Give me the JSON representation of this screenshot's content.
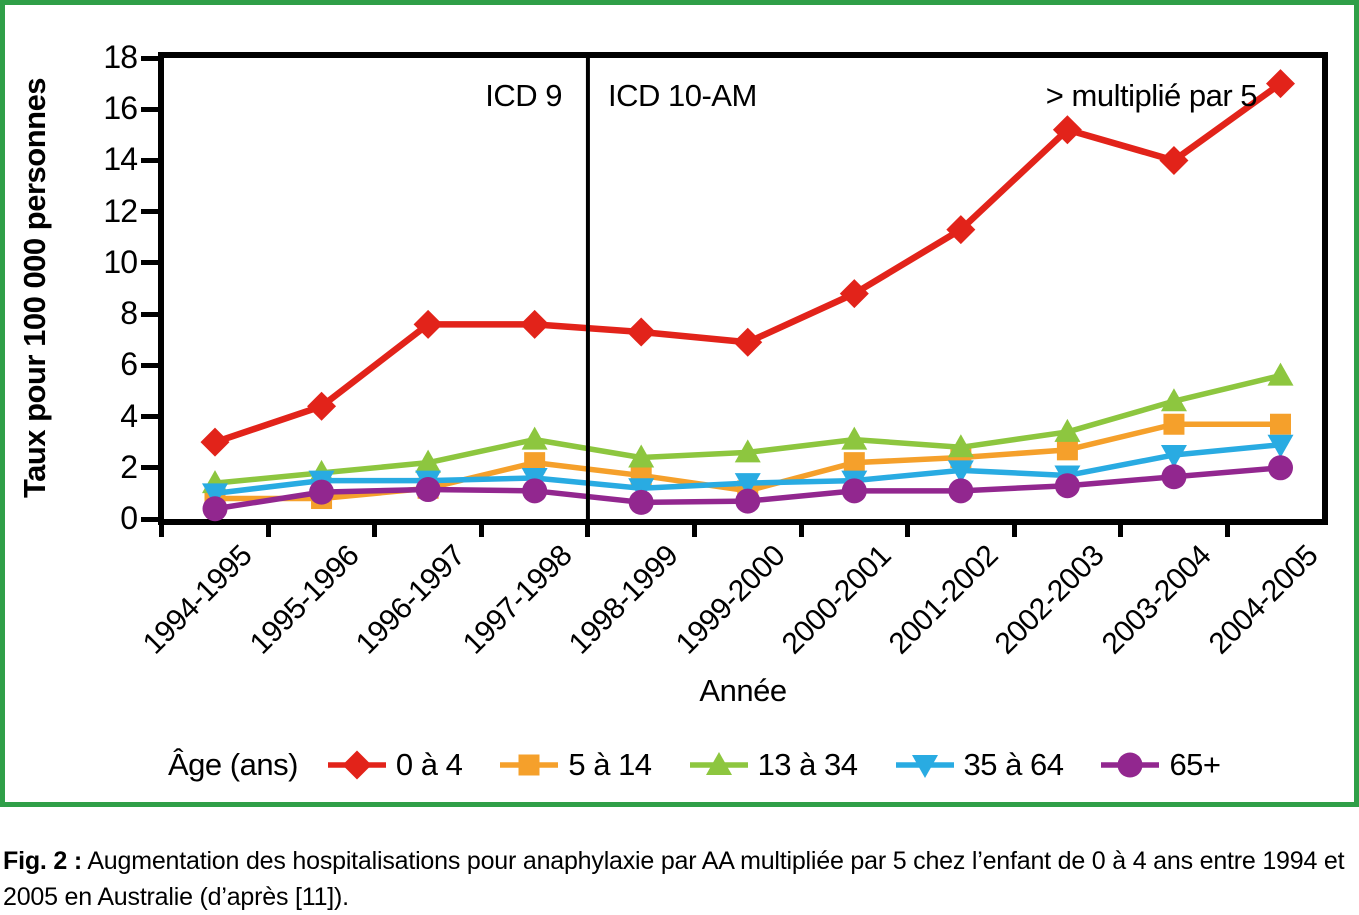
{
  "frame_color": "#2f9f48",
  "chart_data": {
    "type": "line",
    "ylabel": "Taux pour 100 000 personnes",
    "xlabel": "Année",
    "ylim": [
      0,
      18
    ],
    "y_ticks": [
      0,
      2,
      4,
      6,
      8,
      10,
      12,
      14,
      16,
      18
    ],
    "grid": false,
    "legend_position": "bottom",
    "legend_title": "Âge (ans)",
    "categories": [
      "1994-1995",
      "1995-1996",
      "1996-1997",
      "1997-1998",
      "1998-1999",
      "1999-2000",
      "2000-2001",
      "2001-2002",
      "2002-2003",
      "2003-2004",
      "2004-2005"
    ],
    "series": [
      {
        "name": "0 à 4",
        "color": "#e2231a",
        "marker": "diamond",
        "values": [
          3.0,
          4.4,
          7.6,
          7.6,
          7.3,
          6.9,
          8.8,
          11.3,
          15.2,
          14.0,
          17.0
        ]
      },
      {
        "name": "5 à 14",
        "color": "#f5a02b",
        "marker": "square",
        "values": [
          0.8,
          0.8,
          1.2,
          2.2,
          1.7,
          1.1,
          2.2,
          2.4,
          2.7,
          3.7,
          3.7
        ]
      },
      {
        "name": "13 à 34",
        "color": "#8dc63f",
        "marker": "triangle-up",
        "values": [
          1.4,
          1.8,
          2.2,
          3.1,
          2.4,
          2.6,
          3.1,
          2.8,
          3.4,
          4.6,
          5.6
        ]
      },
      {
        "name": "35 à 64",
        "color": "#29abe2",
        "marker": "triangle-down",
        "values": [
          1.0,
          1.5,
          1.5,
          1.6,
          1.2,
          1.4,
          1.5,
          1.9,
          1.7,
          2.5,
          2.9
        ]
      },
      {
        "name": "65+",
        "color": "#92278f",
        "marker": "circle",
        "values": [
          0.4,
          1.05,
          1.15,
          1.1,
          0.65,
          0.7,
          1.1,
          1.1,
          1.3,
          1.65,
          2.0
        ]
      }
    ],
    "divider_between": [
      "1997-1998",
      "1998-1999"
    ],
    "annotations": [
      {
        "id": "icd9",
        "text": "ICD 9"
      },
      {
        "id": "icd10",
        "text": "ICD 10-AM"
      },
      {
        "id": "mult5",
        "text": "> multiplié par 5"
      }
    ]
  },
  "caption": {
    "label": "Fig. 2 :",
    "text": " Augmentation des hospitalisations pour anaphylaxie par AA multipliée par 5 chez l’enfant de 0 à 4 ans entre 1994 et 2005 en Australie (d’après [11])."
  }
}
